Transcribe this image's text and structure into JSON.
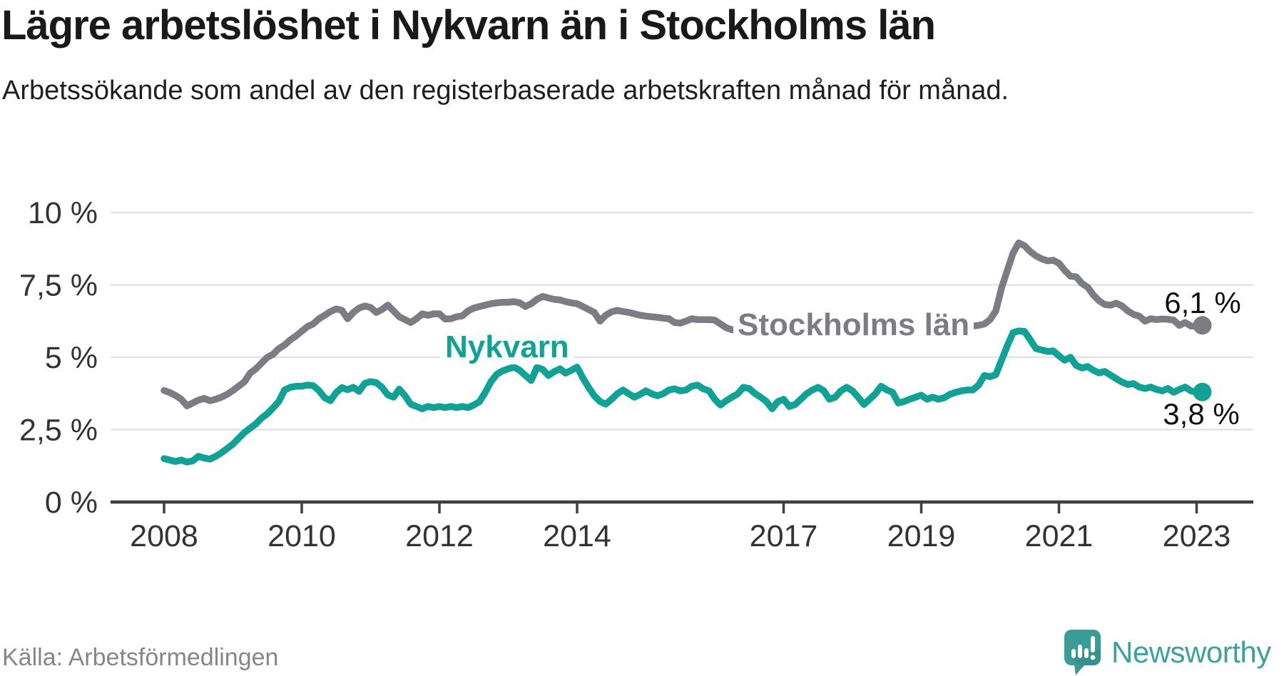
{
  "header": {
    "title": "Lägre arbetslöshet i Nykvarn än i Stockholms län",
    "subtitle": "Arbetssökande som andel av den registerbaserade arbetskraften månad för månad."
  },
  "chart_data": {
    "type": "line",
    "unit": "%",
    "frequency": "monthly",
    "x_start": "2008-01",
    "x_end": "2023-02",
    "grid": true,
    "legend_position": "inline-labels",
    "y_axis": {
      "range": [
        0,
        10
      ],
      "ticks": [
        {
          "value": 0,
          "label": "0 %"
        },
        {
          "value": 2.5,
          "label": "2,5 %"
        },
        {
          "value": 5,
          "label": "5 %"
        },
        {
          "value": 7.5,
          "label": "7,5 %"
        },
        {
          "value": 10,
          "label": "10 %"
        }
      ]
    },
    "x_axis": {
      "ticks": [
        {
          "year": 2008,
          "label": "2008"
        },
        {
          "year": 2010,
          "label": "2010"
        },
        {
          "year": 2012,
          "label": "2012"
        },
        {
          "year": 2014,
          "label": "2014"
        },
        {
          "year": 2017,
          "label": "2017"
        },
        {
          "year": 2019,
          "label": "2019"
        },
        {
          "year": 2021,
          "label": "2021"
        },
        {
          "year": 2023,
          "label": "2023"
        }
      ]
    },
    "series": [
      {
        "name": "Stockholms län",
        "color": "#7C7C84",
        "end_label": "6,1 %",
        "end_value": 6.1,
        "values": [
          3.85,
          3.78,
          3.68,
          3.55,
          3.32,
          3.42,
          3.52,
          3.58,
          3.5,
          3.55,
          3.62,
          3.72,
          3.85,
          4,
          4.15,
          4.45,
          4.6,
          4.8,
          5,
          5.1,
          5.3,
          5.42,
          5.6,
          5.74,
          5.9,
          6.06,
          6.15,
          6.33,
          6.45,
          6.58,
          6.67,
          6.62,
          6.33,
          6.55,
          6.7,
          6.77,
          6.72,
          6.55,
          6.65,
          6.8,
          6.6,
          6.4,
          6.3,
          6.2,
          6.33,
          6.5,
          6.45,
          6.5,
          6.5,
          6.32,
          6.33,
          6.4,
          6.43,
          6.6,
          6.7,
          6.75,
          6.8,
          6.85,
          6.88,
          6.9,
          6.9,
          6.92,
          6.88,
          6.75,
          6.85,
          7,
          7.1,
          7.05,
          7,
          6.98,
          6.92,
          6.88,
          6.85,
          6.75,
          6.65,
          6.55,
          6.25,
          6.45,
          6.57,
          6.62,
          6.58,
          6.55,
          6.5,
          6.45,
          6.42,
          6.4,
          6.38,
          6.35,
          6.33,
          6.2,
          6.18,
          6.25,
          6.33,
          6.3,
          6.3,
          6.3,
          6.28,
          6.15,
          6.02,
          5.95,
          5.92,
          5.95,
          6,
          6.02,
          5.98,
          5.92,
          5.9,
          5.95,
          5.95,
          6,
          5.97,
          5.92,
          5.88,
          5.92,
          6,
          6.05,
          6,
          5.95,
          5.9,
          5.95,
          5.92,
          5.88,
          5.82,
          5.8,
          5.85,
          5.9,
          5.95,
          6,
          5.95,
          5.9,
          5.9,
          5.95,
          5.95,
          6,
          6.02,
          6.05,
          6.05,
          6.08,
          6.1,
          6.1,
          6.05,
          6.08,
          6.1,
          6.15,
          6.3,
          6.6,
          7.4,
          8,
          8.6,
          8.95,
          8.85,
          8.65,
          8.5,
          8.4,
          8.33,
          8.35,
          8.25,
          8,
          7.8,
          7.78,
          7.55,
          7.42,
          7.15,
          6.95,
          6.82,
          6.8,
          6.87,
          6.77,
          6.6,
          6.48,
          6.42,
          6.25,
          6.33,
          6.3,
          6.32,
          6.31,
          6.28,
          6.1,
          6.2,
          6.08,
          6.07,
          6.1
        ]
      },
      {
        "name": "Nykvarn",
        "color": "#12A195",
        "end_label": "3,8 %",
        "end_value": 3.8,
        "values": [
          1.5,
          1.45,
          1.4,
          1.45,
          1.38,
          1.42,
          1.58,
          1.52,
          1.48,
          1.58,
          1.7,
          1.85,
          2,
          2.2,
          2.4,
          2.55,
          2.7,
          2.9,
          3.05,
          3.25,
          3.47,
          3.87,
          3.96,
          4,
          4,
          4.04,
          4.02,
          3.85,
          3.6,
          3.5,
          3.78,
          3.95,
          3.88,
          3.96,
          3.82,
          4.1,
          4.16,
          4.12,
          3.96,
          3.7,
          3.62,
          3.9,
          3.67,
          3.38,
          3.3,
          3.22,
          3.3,
          3.26,
          3.3,
          3.26,
          3.3,
          3.26,
          3.3,
          3.26,
          3.35,
          3.47,
          3.79,
          4.16,
          4.41,
          4.53,
          4.6,
          4.66,
          4.55,
          4.37,
          4.2,
          4.65,
          4.58,
          4.37,
          4.5,
          4.6,
          4.45,
          4.55,
          4.66,
          4.29,
          3.96,
          3.67,
          3.47,
          3.38,
          3.55,
          3.74,
          3.87,
          3.74,
          3.62,
          3.72,
          3.84,
          3.74,
          3.67,
          3.74,
          3.87,
          3.91,
          3.84,
          3.87,
          4,
          4.04,
          3.91,
          3.84,
          3.55,
          3.35,
          3.5,
          3.62,
          3.74,
          3.96,
          3.92,
          3.75,
          3.62,
          3.47,
          3.22,
          3.47,
          3.55,
          3.3,
          3.37,
          3.55,
          3.74,
          3.87,
          3.96,
          3.84,
          3.55,
          3.62,
          3.84,
          3.96,
          3.84,
          3.62,
          3.37,
          3.55,
          3.74,
          4,
          3.87,
          3.79,
          3.42,
          3.47,
          3.55,
          3.62,
          3.69,
          3.55,
          3.62,
          3.55,
          3.6,
          3.72,
          3.79,
          3.84,
          3.87,
          3.87,
          4.04,
          4.37,
          4.33,
          4.4,
          4.9,
          5.4,
          5.85,
          5.91,
          5.89,
          5.6,
          5.3,
          5.25,
          5.2,
          5.22,
          5.05,
          4.9,
          5,
          4.72,
          4.63,
          4.68,
          4.55,
          4.46,
          4.51,
          4.38,
          4.26,
          4.14,
          4.06,
          4.09,
          3.97,
          3.92,
          3.97,
          3.89,
          3.84,
          3.92,
          3.79,
          3.89,
          3.97,
          3.84,
          3.79,
          3.8
        ]
      }
    ]
  },
  "footer": {
    "source": "Källa: Arbetsförmedlingen",
    "brand": "Newsworthy"
  },
  "colors": {
    "grid": "#E3E3E3",
    "axis": "#3F3F3F",
    "axis_text": "#333333",
    "title_text": "#191919",
    "source_text": "#85858D",
    "brand_teal": "#3EA19B",
    "series_stockholm": "#7C7C84",
    "series_nykvarn": "#12A195"
  }
}
